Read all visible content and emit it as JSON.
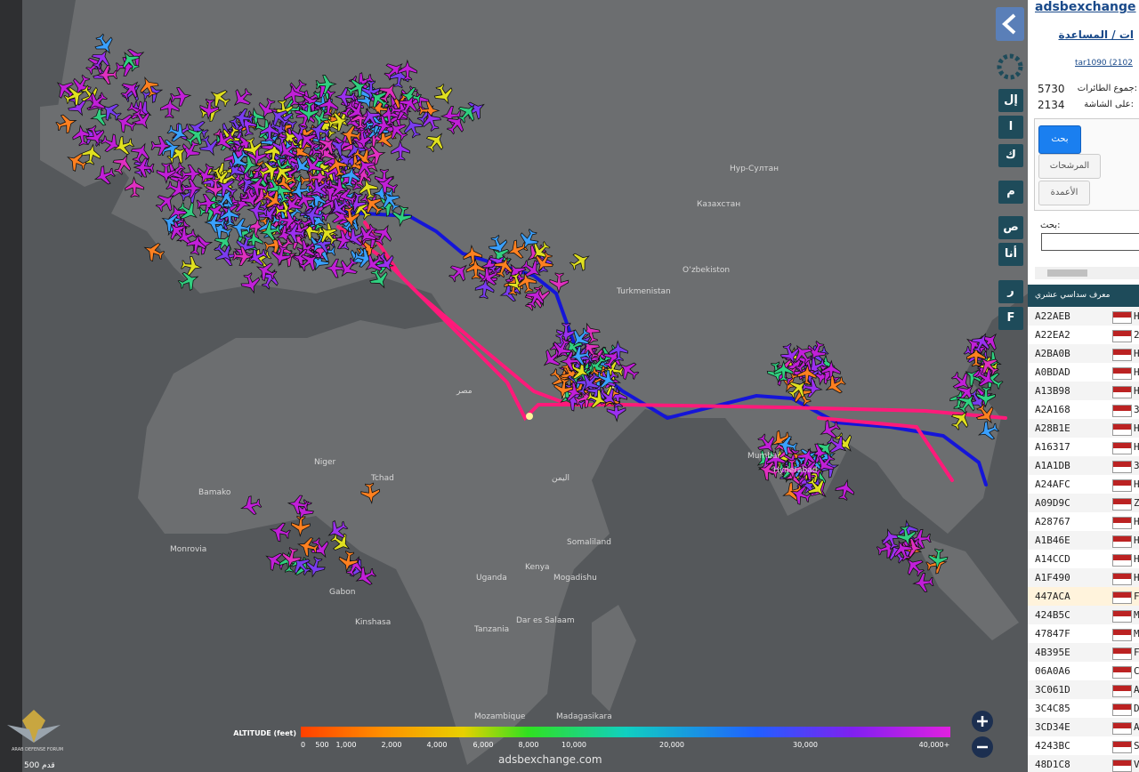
{
  "sidebar": {
    "title": "adsbexchange",
    "help": "ات / المساعدة",
    "version": "tar1090 (2102",
    "total_label": "جموع الطائرات:",
    "total": "5730",
    "onscreen_label": "على الشاشة:",
    "onscreen": "2134",
    "tabs": [
      "بحث",
      "المرشحات",
      "الأعمدة"
    ],
    "search_label": "بحث:",
    "column_header": "معرف سداسي عشري",
    "rows": [
      [
        "A22AEB",
        "H"
      ],
      [
        "A22EA2",
        "2"
      ],
      [
        "A2BA0B",
        "H"
      ],
      [
        "A0BDAD",
        "H"
      ],
      [
        "A13B98",
        "H"
      ],
      [
        "A2A168",
        "3"
      ],
      [
        "A28B1E",
        "H"
      ],
      [
        "A16317",
        "H"
      ],
      [
        "A1A1DB",
        "3"
      ],
      [
        "A24AFC",
        "H"
      ],
      [
        "A09D9C",
        "Z"
      ],
      [
        "A28767",
        "H"
      ],
      [
        "A1B46E",
        "H"
      ],
      [
        "A14CCD",
        "H"
      ],
      [
        "A1F490",
        "H"
      ],
      [
        "447ACA",
        "F"
      ],
      [
        "424B5C",
        "M"
      ],
      [
        "47847F",
        "M"
      ],
      [
        "4B395E",
        "F"
      ],
      [
        "06A0A6",
        "C"
      ],
      [
        "3C061D",
        "A"
      ],
      [
        "3C4C85",
        "D"
      ],
      [
        "3CD34E",
        "A"
      ],
      [
        "4243BC",
        "S"
      ],
      [
        "48D1C8",
        "V"
      ]
    ]
  },
  "map_buttons": [
    "إل",
    "ا",
    "ك",
    "م",
    "ص",
    "أنا",
    "ر",
    "F"
  ],
  "map_labels": [
    "Казахстан",
    "Нур-Султан",
    "Turkmenistan",
    "Oʻzbekiston",
    "Mumbai",
    "Hyderabad",
    "Niger",
    "Tchad",
    "Bamako",
    "Monrovia",
    "Kinshasa",
    "Tanzania",
    "Mogadishu",
    "Somaliland",
    "Madagasikara",
    "Mozambique",
    "Gabon",
    "مصر",
    "اليمن",
    "Dar es Salaam",
    "Kenya",
    "Uganda"
  ],
  "legend": {
    "title": "ALTITUDE (feet)",
    "ticks": [
      "0",
      "500",
      "1,000",
      "2,000",
      "4,000",
      "6,000",
      "8,000",
      "10,000",
      "20,000",
      "30,000",
      "40,000+"
    ]
  },
  "footer": "adsbexchange.com",
  "scale": "500 قدم",
  "logo": "ARAB DEFENSE FORUM"
}
